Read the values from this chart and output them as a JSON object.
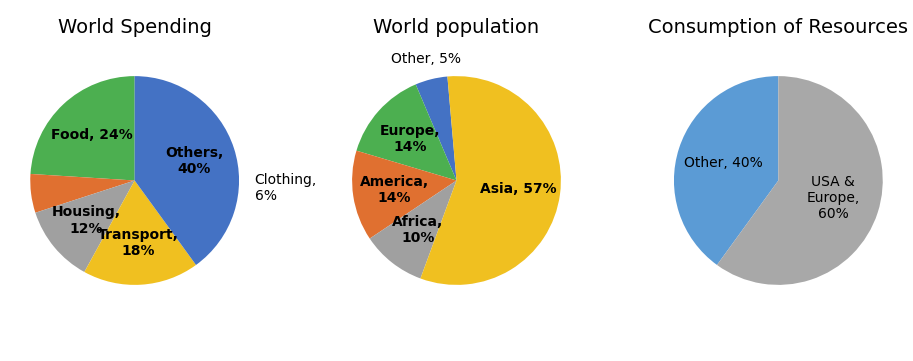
{
  "chart1": {
    "title": "World Spending",
    "labels": [
      "Food, 24%",
      "Clothing,\n6%",
      "Housing,\n12%",
      "Transport,\n18%",
      "Others,\n40%"
    ],
    "values": [
      24,
      6,
      12,
      18,
      40
    ],
    "colors": [
      "#4CAF50",
      "#E07030",
      "#A0A0A0",
      "#F0C020",
      "#4472C4"
    ],
    "startangle": 90
  },
  "chart2": {
    "title": "World population",
    "labels": [
      "Other, 5%",
      "Europe,\n14%",
      "America,\n14%",
      "Africa,\n10%",
      "Asia, 57%"
    ],
    "values": [
      5,
      14,
      14,
      10,
      57
    ],
    "colors": [
      "#4472C4",
      "#4CAF50",
      "#E07030",
      "#A0A0A0",
      "#F0C020"
    ],
    "startangle": 95
  },
  "chart3": {
    "title": "Consumption of Resources",
    "labels": [
      "Other, 40%",
      "USA &\nEurope,\n60%"
    ],
    "values": [
      40,
      60
    ],
    "colors": [
      "#5B9BD5",
      "#A8A8A8"
    ],
    "startangle": 90
  },
  "background_color": "#FFFFFF",
  "title_fontsize": 14,
  "label_fontsize": 10
}
